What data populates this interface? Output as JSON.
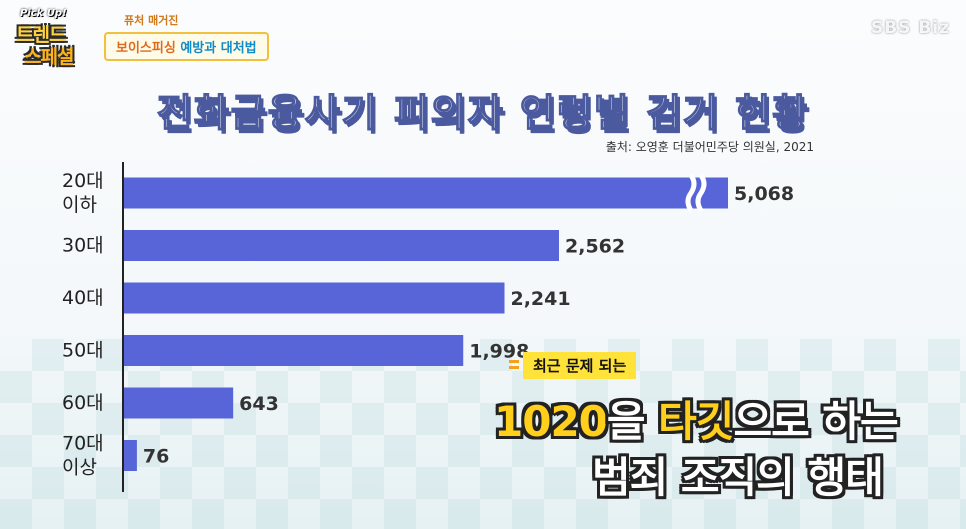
{
  "header": {
    "logo_top": "Pick Up!",
    "logo_line1": "트렌드",
    "logo_line2": "스페셜",
    "segment_small": "퓨처 매거진",
    "segment_part1": "보이스피싱",
    "segment_part2": "예방과 대처법",
    "broadcaster": "SBS Biz"
  },
  "source": "출처: 오영훈 더불어민주당 의원실, 2021",
  "callout": {
    "tag": "최근 문제 되는",
    "line1_hl1": "1020",
    "line1_mid": "을 ",
    "line1_hl2": "타깃",
    "line1_end": "으로 하는",
    "line2": "범죄 조직의 행태"
  },
  "chart_data": {
    "type": "bar",
    "orientation": "horizontal",
    "title": "전화금융사기 피의자 연령별 검거 현황",
    "categories": [
      [
        "20대",
        "이하"
      ],
      [
        "30대"
      ],
      [
        "40대"
      ],
      [
        "50대"
      ],
      [
        "60대"
      ],
      [
        "70대",
        "이상"
      ]
    ],
    "values": [
      5068,
      2562,
      2241,
      1998,
      643,
      76
    ],
    "value_labels": [
      "5,068",
      "2,562",
      "2,241",
      "1,998",
      "643",
      "76"
    ],
    "axis_break_on": "20대 이하",
    "colors": {
      "bar": "#5865d8",
      "axis": "#222222",
      "label": "#333333"
    }
  }
}
